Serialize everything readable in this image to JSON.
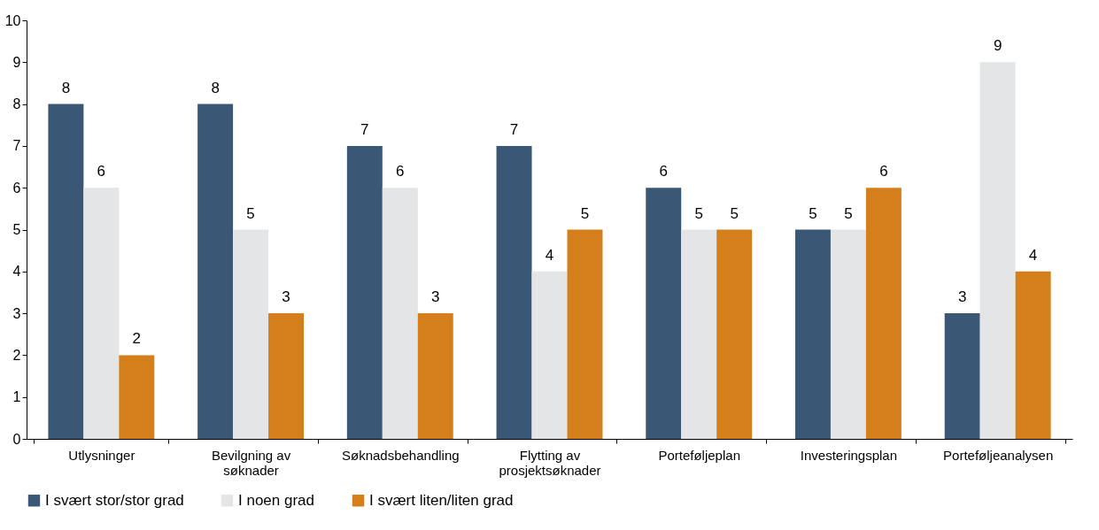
{
  "chart_data": {
    "type": "bar",
    "categories": [
      "Utlysninger",
      "Bevilgning av\nsøknader",
      "Søknadsbehandling",
      "Flytting av\nprosjektsøknader",
      "Porteføljeplan",
      "Investeringsplan",
      "Porteføljeanalysen"
    ],
    "series": [
      {
        "name": "I svært stor/stor grad",
        "color": "#3a5875",
        "values": [
          8,
          8,
          7,
          7,
          6,
          5,
          3
        ]
      },
      {
        "name": "I noen grad",
        "color": "#e4e5e7",
        "values": [
          6,
          5,
          6,
          4,
          5,
          5,
          9
        ]
      },
      {
        "name": "I svært liten/liten grad",
        "color": "#d47f1c",
        "values": [
          2,
          3,
          3,
          5,
          5,
          6,
          4
        ]
      }
    ],
    "ylim": [
      0,
      10
    ],
    "yticks": [
      0,
      1,
      2,
      3,
      4,
      5,
      6,
      7,
      8,
      9,
      10
    ],
    "data_labels": true,
    "grid": false,
    "legend": "bottom"
  }
}
